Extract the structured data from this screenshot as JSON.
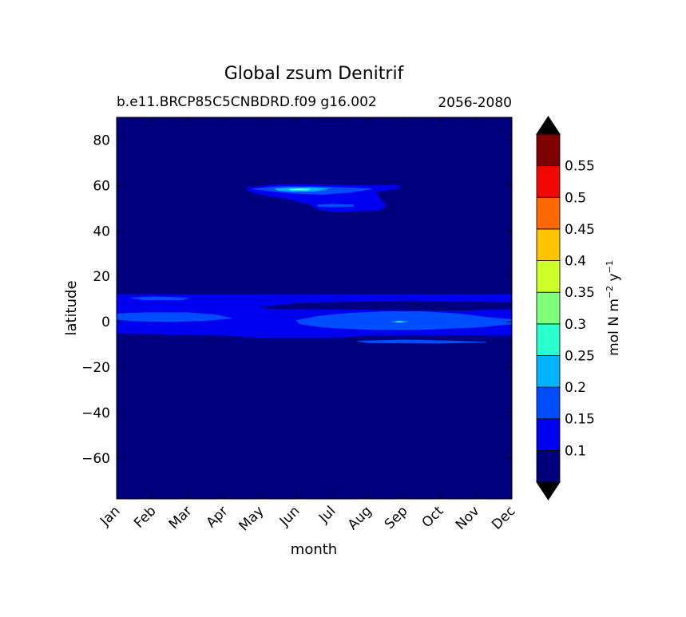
{
  "chart_data": {
    "type": "contourf",
    "title": "Global zsum Denitrif",
    "subtitle_left": "b.e11.BRCP85C5CNBDRD.f09 g16.002",
    "subtitle_right": "2056-2080",
    "xlabel": "month",
    "ylabel": "latitude",
    "x_ticks": [
      "Jan",
      "Feb",
      "Mar",
      "Apr",
      "May",
      "Jun",
      "Jul",
      "Aug",
      "Sep",
      "Oct",
      "Nov",
      "Dec"
    ],
    "y_ticks": [
      80,
      60,
      40,
      20,
      0,
      -20,
      -40,
      -60
    ],
    "ylim": [
      -78,
      90
    ],
    "xlim": [
      0,
      11
    ],
    "grid": false,
    "colorbar": {
      "label": "mol N m",
      "label_exp1": "−2",
      "label_mid": " y",
      "label_exp2": "−1",
      "levels": [
        0.05,
        0.1,
        0.15,
        0.2,
        0.25,
        0.3,
        0.35,
        0.4,
        0.45,
        0.5,
        0.55,
        0.6
      ],
      "tick_labels": [
        "0.1",
        "0.15",
        "0.2",
        "0.25",
        "0.3",
        "0.35",
        "0.4",
        "0.45",
        "0.5",
        "0.55"
      ],
      "colors": [
        "#00007f",
        "#0000f0",
        "#004dff",
        "#00b4ff",
        "#29ffcd",
        "#7dff7a",
        "#cdff29",
        "#ffc400",
        "#ff6800",
        "#f10800",
        "#7f0000"
      ],
      "under_color": "#000000",
      "over_color": "#000000",
      "extend": "both"
    },
    "regions": [
      {
        "level": 1,
        "color": "#0000f0",
        "points": [
          [
            0,
            12
          ],
          [
            11,
            12
          ],
          [
            11,
            -6
          ],
          [
            7,
            -6
          ],
          [
            6,
            -7
          ],
          [
            4,
            -7
          ],
          [
            3,
            -6
          ],
          [
            0,
            -5
          ]
        ]
      },
      {
        "level": 2,
        "color": "#004dff",
        "points": [
          [
            0,
            3.5
          ],
          [
            0.8,
            4
          ],
          [
            2,
            4
          ],
          [
            2.8,
            3
          ],
          [
            3.2,
            1.5
          ],
          [
            2.5,
            0.5
          ],
          [
            1.5,
            0
          ],
          [
            0.5,
            0.3
          ],
          [
            0,
            1
          ]
        ]
      },
      {
        "level": 2,
        "color": "#004dff",
        "points": [
          [
            5,
            0.5
          ],
          [
            5.6,
            2.5
          ],
          [
            6.5,
            3.8
          ],
          [
            7.5,
            4.5
          ],
          [
            8.5,
            4.5
          ],
          [
            9.5,
            3.5
          ],
          [
            10.3,
            2
          ],
          [
            11,
            1
          ],
          [
            11,
            -1
          ],
          [
            10,
            -2.5
          ],
          [
            8.5,
            -3.5
          ],
          [
            7,
            -3.5
          ],
          [
            5.8,
            -2.5
          ],
          [
            5.1,
            -1
          ]
        ]
      },
      {
        "level": 2,
        "color": "#004dff",
        "points": [
          [
            0.4,
            10.5
          ],
          [
            1,
            11
          ],
          [
            2,
            10.5
          ],
          [
            1.8,
            9.5
          ],
          [
            0.8,
            9.5
          ]
        ]
      },
      {
        "level": 2,
        "color": "#004dff",
        "points": [
          [
            6.7,
            -8.5
          ],
          [
            8,
            -8
          ],
          [
            9.5,
            -8.5
          ],
          [
            10.3,
            -9
          ],
          [
            9,
            -9.5
          ],
          [
            7,
            -9.3
          ]
        ]
      },
      {
        "level": 1,
        "color": "#0000f0",
        "points": [
          [
            3.6,
            59
          ],
          [
            4.5,
            60.5
          ],
          [
            5.5,
            60.5
          ],
          [
            6.5,
            60
          ],
          [
            7.8,
            60
          ],
          [
            7.9,
            59
          ],
          [
            7.2,
            57
          ],
          [
            7.5,
            51
          ],
          [
            7.3,
            49
          ],
          [
            6,
            48.5
          ],
          [
            5.6,
            49.5
          ],
          [
            5.4,
            51.5
          ],
          [
            4.8,
            54
          ],
          [
            4,
            56
          ],
          [
            3.7,
            57.5
          ]
        ]
      },
      {
        "level": 2,
        "color": "#004dff",
        "points": [
          [
            3.8,
            58.5
          ],
          [
            4.5,
            59.5
          ],
          [
            5.5,
            59.5
          ],
          [
            6.5,
            59
          ],
          [
            7.1,
            58.5
          ],
          [
            6.5,
            57
          ],
          [
            5.7,
            56
          ],
          [
            5,
            56.5
          ],
          [
            4.3,
            57.5
          ]
        ]
      },
      {
        "level": 2,
        "color": "#004dff",
        "points": [
          [
            5.6,
            51.5
          ],
          [
            6,
            51.8
          ],
          [
            6.6,
            51.5
          ],
          [
            6.6,
            50.8
          ],
          [
            6,
            50.5
          ],
          [
            5.6,
            50.8
          ]
        ]
      },
      {
        "level": 3,
        "color": "#00b4ff",
        "points": [
          [
            4.4,
            58.5
          ],
          [
            4.8,
            59
          ],
          [
            5.5,
            59
          ],
          [
            5.9,
            58.5
          ],
          [
            5.5,
            57.5
          ],
          [
            4.9,
            57.3
          ],
          [
            4.5,
            57.8
          ]
        ]
      },
      {
        "level": 4,
        "color": "#29ffcd",
        "points": [
          [
            4.8,
            58.3
          ],
          [
            5.1,
            58.6
          ],
          [
            5.4,
            58.4
          ],
          [
            5.3,
            57.9
          ],
          [
            4.9,
            57.9
          ]
        ]
      },
      {
        "level": 5,
        "color": "#7dff7a",
        "points": [
          [
            4.95,
            58.2
          ],
          [
            5.1,
            58.4
          ],
          [
            5.25,
            58.2
          ],
          [
            5.1,
            58
          ]
        ]
      },
      {
        "level": 3,
        "color": "#00b4ff",
        "points": [
          [
            7.65,
            0
          ],
          [
            7.85,
            0.3
          ],
          [
            8.1,
            0
          ],
          [
            7.85,
            -0.3
          ]
        ]
      },
      {
        "level": 4,
        "color": "#29ffcd",
        "points": [
          [
            7.78,
            0
          ],
          [
            7.88,
            0.12
          ],
          [
            7.98,
            0
          ],
          [
            7.88,
            -0.12
          ]
        ]
      },
      {
        "level": 0,
        "color": "#00007f",
        "points": [
          [
            4,
            6.5
          ],
          [
            5,
            8
          ],
          [
            6.5,
            8.8
          ],
          [
            8,
            9.2
          ],
          [
            9.5,
            8.8
          ],
          [
            11,
            8.5
          ],
          [
            11,
            5.5
          ],
          [
            9.5,
            5
          ],
          [
            8,
            5.2
          ],
          [
            6.5,
            5.4
          ],
          [
            5.2,
            5.6
          ],
          [
            4.3,
            5.8
          ]
        ]
      }
    ]
  }
}
